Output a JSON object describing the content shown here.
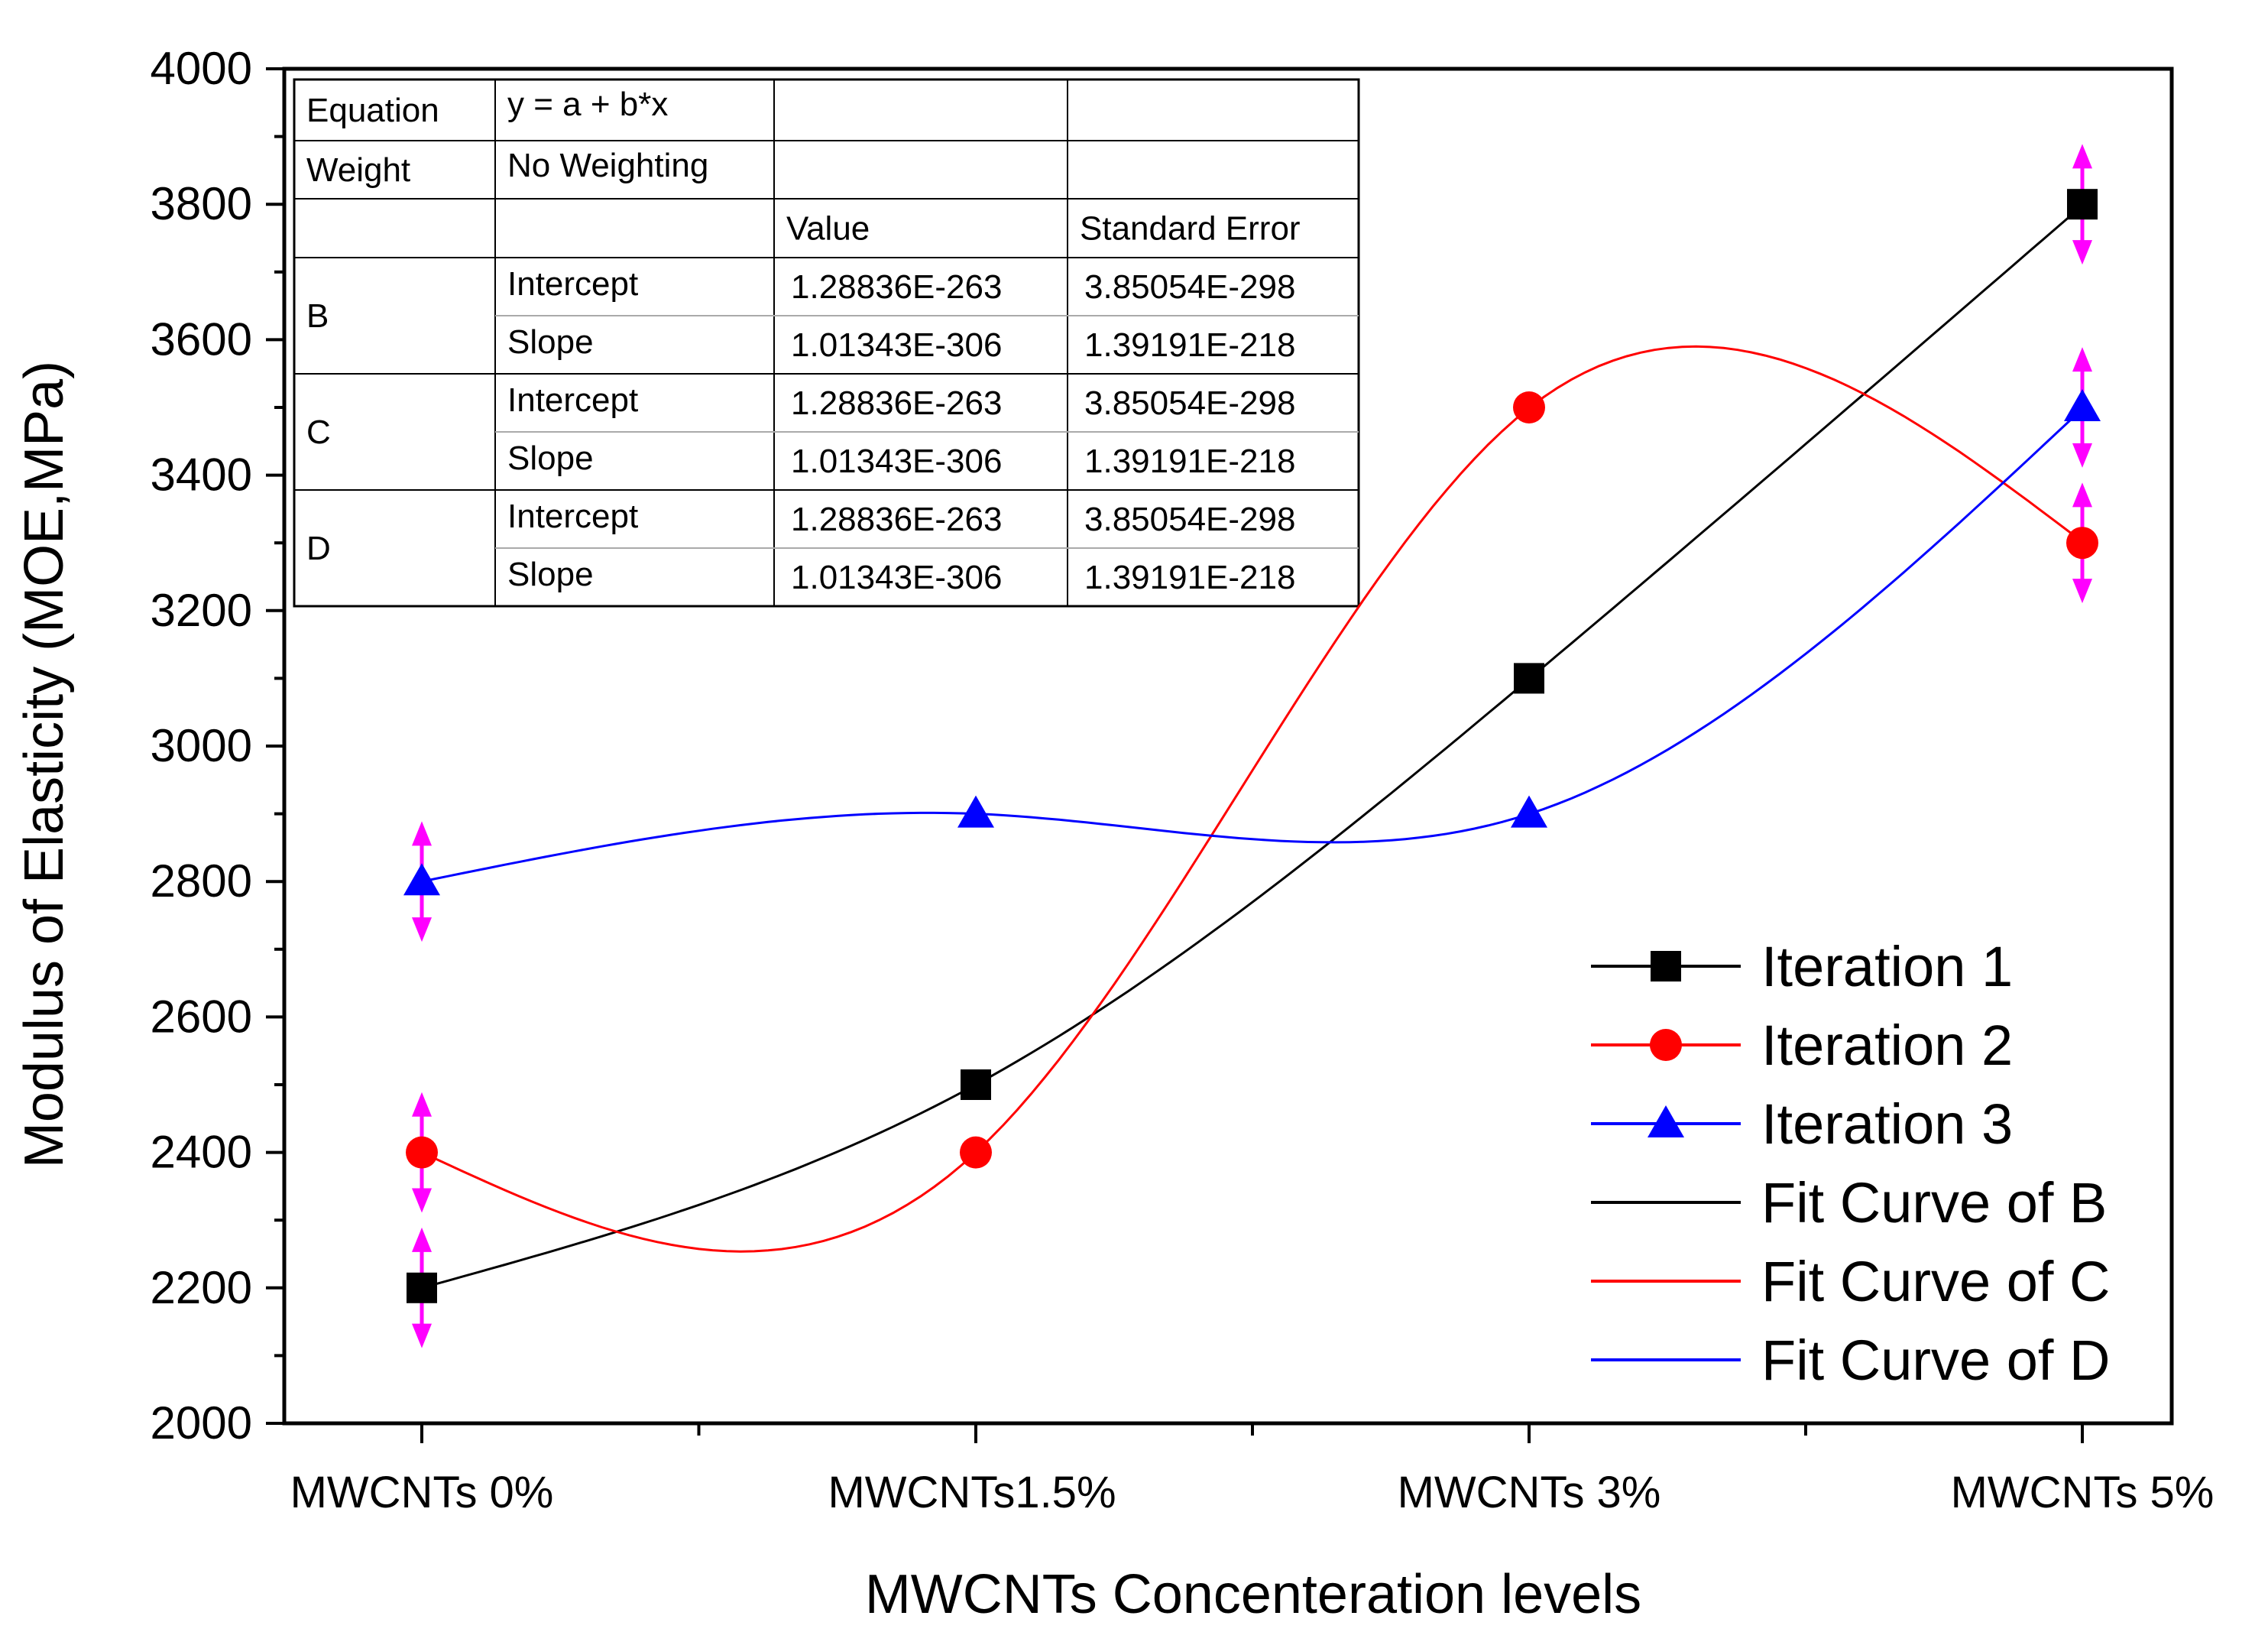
{
  "chart_data": {
    "type": "line",
    "xlabel": "MWCNTs Concenteration levels",
    "ylabel": "Modulus of Elasticity (MOE,MPa)",
    "categories": [
      "MWCNTs 0%",
      "MWCNTs1.5%",
      "MWCNTs 3%",
      "MWCNTs 5%"
    ],
    "ylim": [
      2000,
      4000
    ],
    "yticks": [
      "2000",
      "2200",
      "2400",
      "2600",
      "2800",
      "3000",
      "3200",
      "3400",
      "3600",
      "3800",
      "4000"
    ],
    "legend_position": "bottom-right",
    "series": [
      {
        "name": "Iteration 1",
        "marker": "square",
        "color": "#000000",
        "values": [
          2200,
          2500,
          3100,
          3800
        ]
      },
      {
        "name": "Iteration 2",
        "marker": "circle",
        "color": "#ff0000",
        "values": [
          2400,
          2400,
          3500,
          3300
        ]
      },
      {
        "name": "Iteration 3",
        "marker": "triangle",
        "color": "#0000ff",
        "values": [
          2800,
          2900,
          2900,
          3500
        ]
      }
    ],
    "fit_curves": [
      {
        "name": "Fit Curve of B",
        "color": "#000000",
        "of_series": 0
      },
      {
        "name": "Fit Curve of C",
        "color": "#ff0000",
        "of_series": 1
      },
      {
        "name": "Fit Curve of D",
        "color": "#0000ff",
        "of_series": 2
      }
    ],
    "error_bar_color": "#ff00ff",
    "error_bars": [
      {
        "category": 0,
        "value": 2200,
        "err": 80
      },
      {
        "category": 0,
        "value": 2400,
        "err": 80
      },
      {
        "category": 0,
        "value": 2800,
        "err": 80
      },
      {
        "category": 3,
        "value": 3800,
        "err": 80
      },
      {
        "category": 3,
        "value": 3500,
        "err": 80
      },
      {
        "category": 3,
        "value": 3300,
        "err": 80
      }
    ],
    "fit_table": {
      "equation_label": "Equation",
      "equation": "y = a + b*x",
      "weight_label": "Weight",
      "weight": "No Weighting",
      "value_header": "Value",
      "error_header": "Standard Error",
      "groups": [
        {
          "name": "B",
          "rows": [
            {
              "param": "Intercept",
              "value": "1.28836E-263",
              "error": "3.85054E-298"
            },
            {
              "param": "Slope",
              "value": "1.01343E-306",
              "error": "1.39191E-218"
            }
          ]
        },
        {
          "name": "C",
          "rows": [
            {
              "param": "Intercept",
              "value": "1.28836E-263",
              "error": "3.85054E-298"
            },
            {
              "param": "Slope",
              "value": "1.01343E-306",
              "error": "1.39191E-218"
            }
          ]
        },
        {
          "name": "D",
          "rows": [
            {
              "param": "Intercept",
              "value": "1.28836E-263",
              "error": "3.85054E-298"
            },
            {
              "param": "Slope",
              "value": "1.01343E-306",
              "error": "1.39191E-218"
            }
          ]
        }
      ]
    }
  }
}
